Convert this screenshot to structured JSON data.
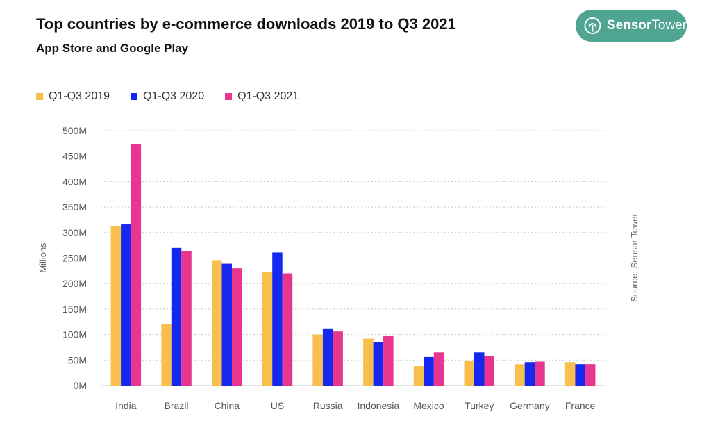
{
  "header": {
    "title": "Top countries by e-commerce downloads 2019 to Q3 2021",
    "subtitle": "App Store and Google Play"
  },
  "logo": {
    "brand_first": "Sensor",
    "brand_second": "Tower",
    "icon": "sensor-tower-icon",
    "color": "#4fa591"
  },
  "source_note": "Source: Sensor Tower",
  "chart_data": {
    "type": "bar",
    "title": "Top countries by e-commerce downloads 2019 to Q3 2021",
    "subtitle": "App Store and Google Play",
    "xlabel": "",
    "ylabel": "Millions",
    "ylim": [
      0,
      500
    ],
    "yticks": [
      0,
      50,
      100,
      150,
      200,
      250,
      300,
      350,
      400,
      450,
      500
    ],
    "ytick_labels": [
      "0M",
      "50M",
      "100M",
      "150M",
      "200M",
      "250M",
      "300M",
      "350M",
      "400M",
      "450M",
      "500M"
    ],
    "grid": true,
    "legend_position": "top-left",
    "categories": [
      "India",
      "Brazil",
      "China",
      "US",
      "Russia",
      "Indonesia",
      "Mexico",
      "Turkey",
      "Germany",
      "France"
    ],
    "series": [
      {
        "name": "Q1-Q3 2019",
        "color": "#f7c04e",
        "values": [
          313,
          120,
          246,
          222,
          100,
          92,
          38,
          49,
          42,
          46
        ]
      },
      {
        "name": "Q1-Q3 2020",
        "color": "#1428f0",
        "values": [
          316,
          270,
          239,
          261,
          112,
          85,
          56,
          65,
          46,
          42
        ]
      },
      {
        "name": "Q1-Q3 2021",
        "color": "#e8358f",
        "values": [
          473,
          263,
          230,
          220,
          106,
          97,
          65,
          58,
          47,
          42
        ]
      }
    ]
  }
}
